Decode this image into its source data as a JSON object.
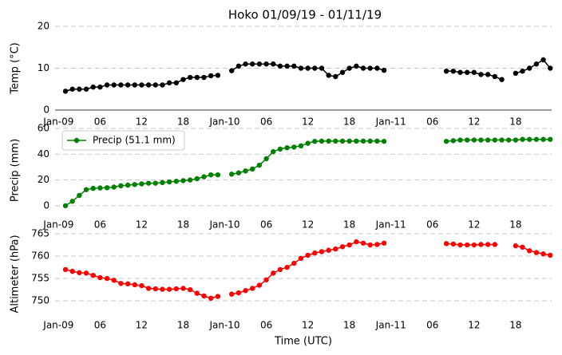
{
  "chart_data": [
    {
      "type": "line",
      "title": "Hoko 01/09/19 - 01/11/19",
      "ylabel": "Temp ($^\\circ$C)",
      "x": [
        1,
        2,
        3,
        4,
        5,
        6,
        7,
        8,
        9,
        10,
        11,
        12,
        13,
        14,
        15,
        16,
        17,
        18,
        19,
        20,
        21,
        22,
        23,
        24,
        25,
        26,
        27,
        28,
        29,
        30,
        31,
        32,
        33,
        34,
        35,
        36,
        37,
        38,
        39,
        40,
        41,
        42,
        43,
        44,
        45,
        46,
        47,
        48,
        49,
        50,
        51,
        52,
        53,
        54,
        55,
        56,
        57,
        58,
        59,
        60,
        61,
        62,
        63,
        64,
        65,
        66,
        67,
        68,
        69,
        70,
        71
      ],
      "values": [
        4.5,
        5,
        5,
        5,
        5.5,
        5.5,
        6,
        6,
        6,
        6,
        6,
        6,
        6,
        6,
        6,
        6.5,
        6.5,
        7.3,
        7.8,
        7.8,
        7.8,
        8.2,
        8.3,
        null,
        9.4,
        10.5,
        11,
        11,
        11,
        11,
        11,
        10.5,
        10.5,
        10.5,
        10,
        10,
        10,
        10,
        8.3,
        8,
        9,
        10,
        10.5,
        10,
        10,
        10,
        9.5,
        null,
        null,
        null,
        null,
        null,
        null,
        null,
        null,
        9.3,
        9.3,
        9,
        9,
        9,
        8.5,
        8.5,
        8,
        7.3,
        null,
        8.8,
        9.3,
        10,
        11,
        12,
        10
      ],
      "color": "#000000",
      "xlim": [
        -0.5,
        71.2
      ],
      "ylim": [
        0,
        20
      ],
      "yticks": [
        0,
        10,
        20
      ],
      "xticks": [
        {
          "value": 0,
          "label": "Jan-09"
        },
        {
          "value": 6,
          "label": "06"
        },
        {
          "value": 12,
          "label": "12"
        },
        {
          "value": 18,
          "label": "18"
        },
        {
          "value": 24,
          "label": "Jan-10"
        },
        {
          "value": 30,
          "label": "06"
        },
        {
          "value": 36,
          "label": "12"
        },
        {
          "value": 42,
          "label": "18"
        },
        {
          "value": 48,
          "label": "Jan-11"
        },
        {
          "value": 54,
          "label": "06"
        },
        {
          "value": 60,
          "label": "12"
        },
        {
          "value": 66,
          "label": "18"
        }
      ],
      "grid": true
    },
    {
      "type": "line",
      "ylabel": "Precip (mm)",
      "x": [
        1,
        2,
        3,
        4,
        5,
        6,
        7,
        8,
        9,
        10,
        11,
        12,
        13,
        14,
        15,
        16,
        17,
        18,
        19,
        20,
        21,
        22,
        23,
        24,
        25,
        26,
        27,
        28,
        29,
        30,
        31,
        32,
        33,
        34,
        35,
        36,
        37,
        38,
        39,
        40,
        41,
        42,
        43,
        44,
        45,
        46,
        47,
        48,
        49,
        50,
        51,
        52,
        53,
        54,
        55,
        56,
        57,
        58,
        59,
        60,
        61,
        62,
        63,
        64,
        65,
        66,
        67,
        68,
        69,
        70,
        71
      ],
      "series": [
        {
          "name": "Precip (51.1 mm)",
          "color": "#008000",
          "values": [
            0,
            3.5,
            8,
            12.5,
            13.5,
            13.8,
            14,
            14.5,
            15.5,
            16,
            16.5,
            17,
            17.5,
            17.5,
            18,
            18.5,
            19,
            19.5,
            20,
            21,
            22.5,
            24,
            24,
            null,
            24.5,
            25.5,
            27,
            28.5,
            31.5,
            36.5,
            42,
            44,
            45,
            45.5,
            46.5,
            48.5,
            50,
            50.2,
            50.2,
            50.2,
            50.2,
            50.2,
            50.2,
            50.2,
            50.2,
            50.2,
            50,
            null,
            null,
            null,
            null,
            null,
            null,
            null,
            null,
            50,
            50.5,
            51,
            51,
            51,
            51,
            51,
            51,
            51,
            51,
            51,
            51.5,
            51.5,
            51.5,
            51.5,
            51.5
          ]
        }
      ],
      "legend": "upper left",
      "xlim": [
        -0.5,
        71.2
      ],
      "ylim": [
        -5,
        60
      ],
      "yticks": [
        0,
        20,
        40,
        60
      ],
      "xticks": [
        {
          "value": 0,
          "label": "Jan-09"
        },
        {
          "value": 6,
          "label": "06"
        },
        {
          "value": 12,
          "label": "12"
        },
        {
          "value": 18,
          "label": "18"
        },
        {
          "value": 24,
          "label": "Jan-10"
        },
        {
          "value": 30,
          "label": "06"
        },
        {
          "value": 36,
          "label": "12"
        },
        {
          "value": 42,
          "label": "18"
        },
        {
          "value": 48,
          "label": "Jan-11"
        },
        {
          "value": 54,
          "label": "06"
        },
        {
          "value": 60,
          "label": "12"
        },
        {
          "value": 66,
          "label": "18"
        }
      ],
      "grid": true
    },
    {
      "type": "line",
      "ylabel": "Altimeter (hPa)",
      "xlabel": "Time (UTC)",
      "x": [
        1,
        2,
        3,
        4,
        5,
        6,
        7,
        8,
        9,
        10,
        11,
        12,
        13,
        14,
        15,
        16,
        17,
        18,
        19,
        20,
        21,
        22,
        23,
        24,
        25,
        26,
        27,
        28,
        29,
        30,
        31,
        32,
        33,
        34,
        35,
        36,
        37,
        38,
        39,
        40,
        41,
        42,
        43,
        44,
        45,
        46,
        47,
        48,
        49,
        50,
        51,
        52,
        53,
        54,
        55,
        56,
        57,
        58,
        59,
        60,
        61,
        62,
        63,
        64,
        65,
        66,
        67,
        68,
        69,
        70,
        71
      ],
      "values": [
        757,
        756.6,
        756.3,
        756.2,
        755.7,
        755.2,
        755,
        754.6,
        753.9,
        753.8,
        753.6,
        753.4,
        752.8,
        752.7,
        752.6,
        752.6,
        752.7,
        752.8,
        752.5,
        751.7,
        751.1,
        750.6,
        751,
        null,
        751.5,
        751.8,
        752.3,
        752.8,
        753.5,
        754.7,
        756.2,
        757,
        757.5,
        758.4,
        759.5,
        760.2,
        760.7,
        761,
        761.3,
        761.6,
        762.1,
        762.5,
        763.2,
        762.9,
        762.5,
        762.6,
        762.9,
        null,
        null,
        null,
        null,
        null,
        null,
        null,
        null,
        762.8,
        762.7,
        762.5,
        762.5,
        762.5,
        762.6,
        762.6,
        762.6,
        null,
        null,
        762.3,
        762,
        761.2,
        760.8,
        760.5,
        760.2
      ],
      "color": "#ff0000",
      "xlim": [
        -0.5,
        71.2
      ],
      "ylim": [
        747,
        765
      ],
      "yticks": [
        750,
        755,
        760,
        765
      ],
      "xticks": [
        {
          "value": 0,
          "label": "Jan-09"
        },
        {
          "value": 6,
          "label": "06"
        },
        {
          "value": 12,
          "label": "12"
        },
        {
          "value": 18,
          "label": "18"
        },
        {
          "value": 24,
          "label": "Jan-10"
        },
        {
          "value": 30,
          "label": "06"
        },
        {
          "value": 36,
          "label": "12"
        },
        {
          "value": 42,
          "label": "18"
        },
        {
          "value": 48,
          "label": "Jan-11"
        },
        {
          "value": 54,
          "label": "06"
        },
        {
          "value": 60,
          "label": "12"
        },
        {
          "value": 66,
          "label": "18"
        }
      ],
      "grid": true
    }
  ]
}
